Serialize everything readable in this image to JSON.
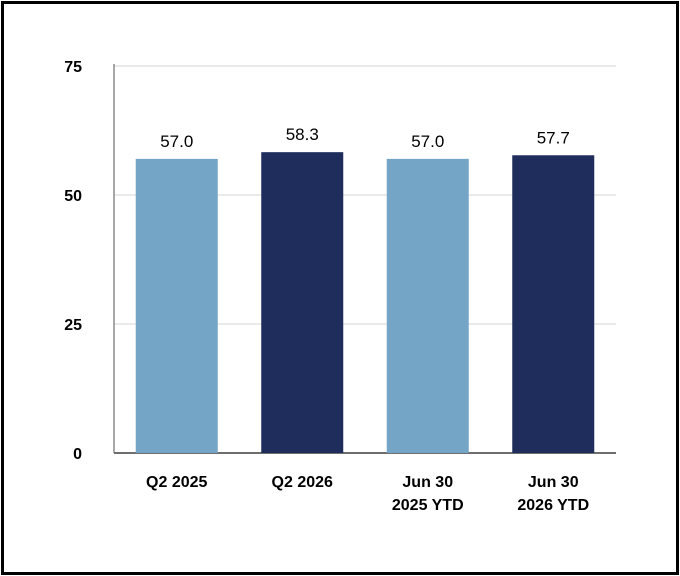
{
  "chart_data": {
    "type": "bar",
    "categories": [
      [
        "Q2 2025"
      ],
      [
        "Q2 2026"
      ],
      [
        "Jun 30",
        "2025 YTD"
      ],
      [
        "Jun 30",
        "2026 YTD"
      ]
    ],
    "values": [
      57.0,
      58.3,
      57.0,
      57.7
    ],
    "data_labels": [
      "57.0",
      "58.3",
      "57.0",
      "57.7"
    ],
    "bar_colors": [
      "#74a5c6",
      "#1e2d5c",
      "#74a5c6",
      "#1e2d5c"
    ],
    "ylim": [
      0,
      75
    ],
    "yticks": [
      0,
      25,
      50,
      75
    ],
    "grid": true,
    "title": "",
    "xlabel": "",
    "ylabel": ""
  }
}
